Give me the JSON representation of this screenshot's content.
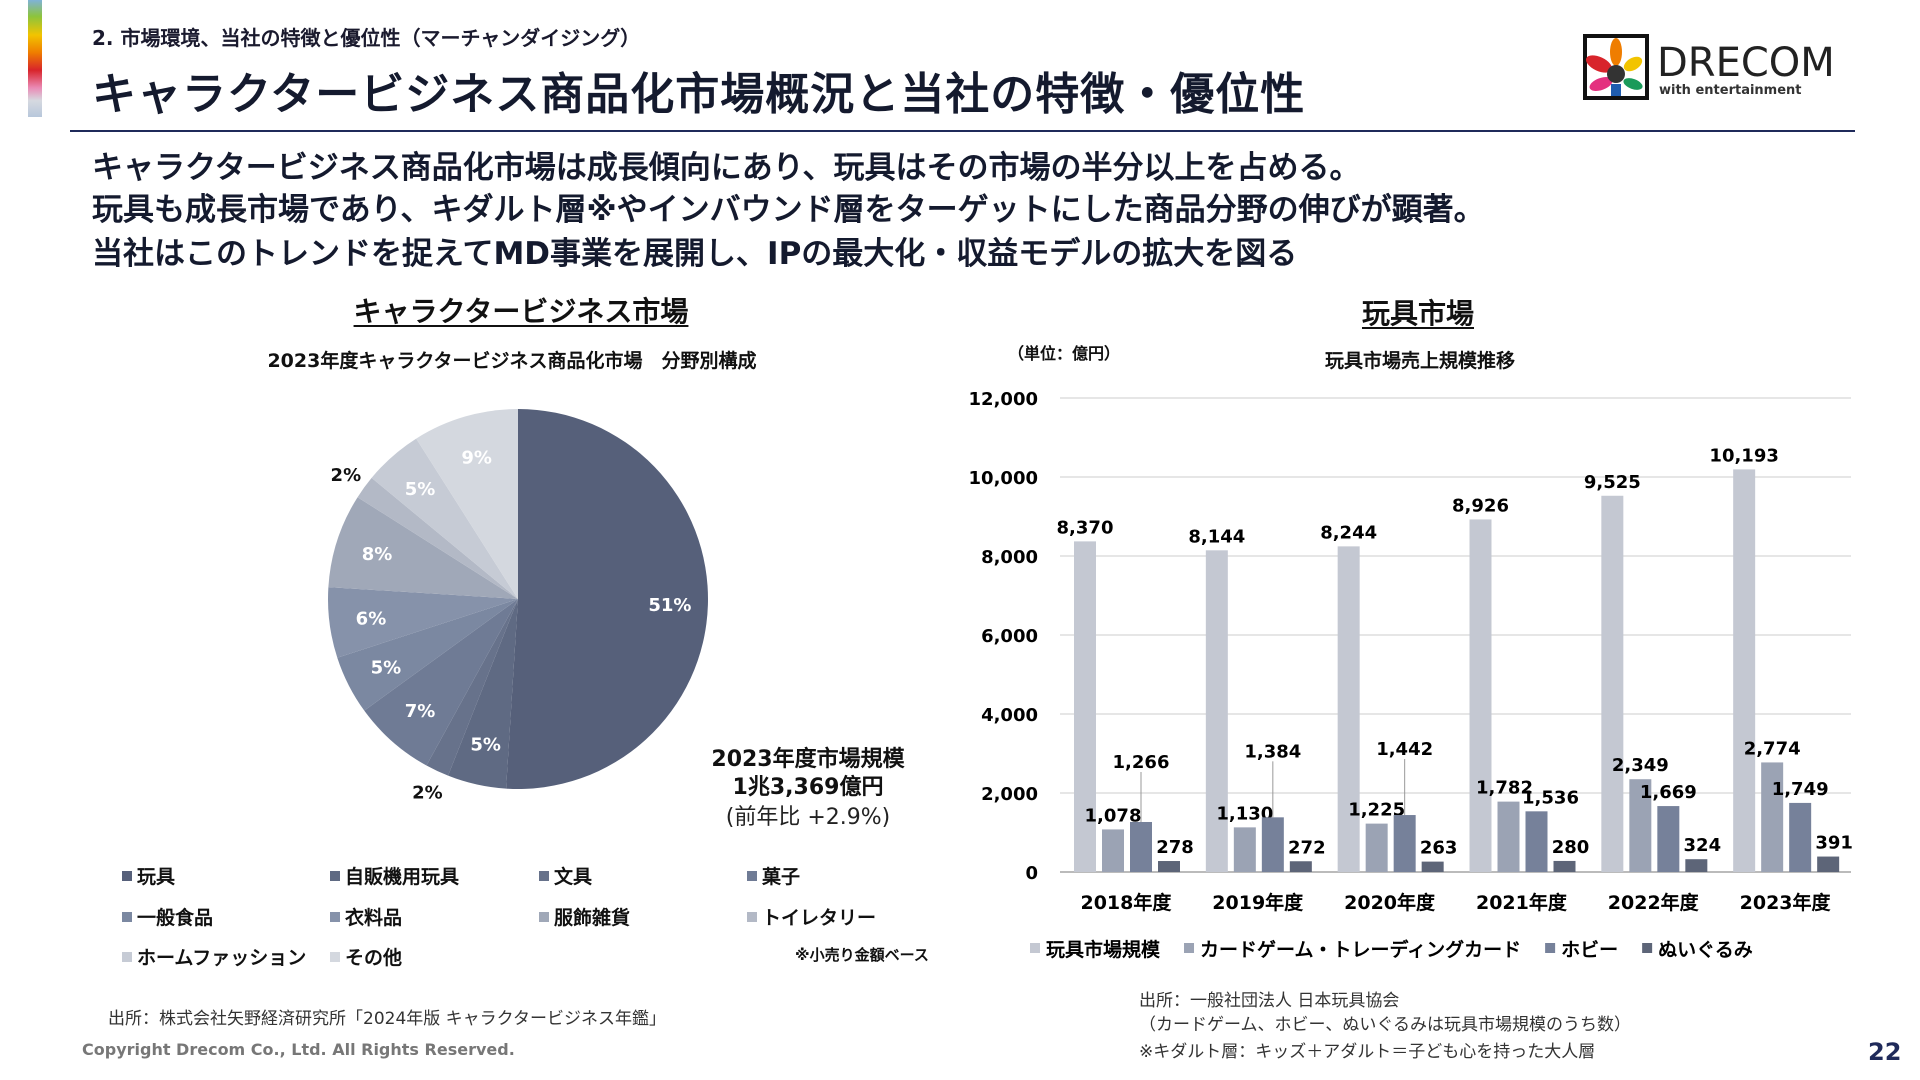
{
  "header": {
    "section": "2. 市場環境、当社の特徴と優位性（マーチャンダイジング）",
    "title": "キャラクタービジネス商品化市場概況と当社の特徴・優位性",
    "logo_text": "DRECOM",
    "logo_tagline": "with entertainment"
  },
  "summary": [
    "キャラクタービジネス商品化市場は成長傾向にあり、玩具はその市場の半分以上を占める。",
    "玩具も成長市場であり、キダルト層※やインバウンド層をターゲットにした商品分野の伸びが顕著。",
    "当社はこのトレンドを捉えてMD事業を展開し、IPの最大化・収益モデルの拡大を図る"
  ],
  "left": {
    "heading": "キャラクタービジネス市場",
    "market_size_title": "2023年度市場規模",
    "market_size_value": "1兆3,369億円",
    "market_size_yoy": "(前年比 +2.9%)",
    "note": "※小売り金額ベース",
    "source": "出所：株式会社矢野経済研究所「2024年版 キャラクタービジネス年鑑」"
  },
  "right": {
    "heading": "玩具市場",
    "unit": "（単位：億円）",
    "source_lines": [
      "出所：一般社団法人 日本玩具協会",
      "（カードゲーム、ホビー、ぬいぐるみは玩具市場規模のうち数）",
      "※キダルト層：キッズ＋アダルト＝子ども心を持った大人層"
    ]
  },
  "footer": {
    "copyright": "Copyright Drecom Co., Ltd. All Rights Reserved.",
    "page": "22"
  },
  "chart_data": [
    {
      "type": "pie",
      "title": "2023年度キャラクタービジネス商品化市場　分野別構成",
      "categories": [
        "玩具",
        "自販機用玩具",
        "文具",
        "菓子",
        "一般食品",
        "衣料品",
        "服飾雑貨",
        "トイレタリー",
        "ホームファッション",
        "その他"
      ],
      "values": [
        51,
        5,
        2,
        7,
        5,
        6,
        8,
        2,
        5,
        9
      ],
      "labels": [
        "51%",
        "5%",
        "2%",
        "7%",
        "5%",
        "6%",
        "8%",
        "2%",
        "5%",
        "9%"
      ],
      "colors": [
        "#56607a",
        "#5f6a83",
        "#67728b",
        "#6f7b95",
        "#7b88a1",
        "#8692aa",
        "#a0a8b8",
        "#b3b9c6",
        "#c6cbd5",
        "#d4d8df"
      ],
      "legend": "bottom"
    },
    {
      "type": "bar",
      "title": "玩具市場売上規模推移",
      "categories": [
        "2018年度",
        "2019年度",
        "2020年度",
        "2021年度",
        "2022年度",
        "2023年度"
      ],
      "ylim": [
        0,
        12000
      ],
      "yticks": [
        "0",
        "2,000",
        "4,000",
        "6,000",
        "8,000",
        "10,000",
        "12,000"
      ],
      "grid": true,
      "legend": "bottom",
      "series": [
        {
          "name": "玩具市場規模",
          "values": [
            8370,
            8144,
            8244,
            8926,
            9525,
            10193
          ],
          "labels": [
            "8,370",
            "8,144",
            "8,244",
            "8,926",
            "9,525",
            "10,193"
          ],
          "color": "#c4c8d2"
        },
        {
          "name": "カードゲーム・トレーディングカード",
          "values": [
            1078,
            1130,
            1225,
            1782,
            2349,
            2774
          ],
          "labels": [
            "1,078",
            "1,130",
            "1,225",
            "1,782",
            "2,349",
            "2,774"
          ],
          "color": "#9ba3b4"
        },
        {
          "name": "ホビー",
          "values": [
            1266,
            1384,
            1442,
            1536,
            1669,
            1749
          ],
          "labels": [
            "1,266",
            "1,384",
            "1,442",
            "1,536",
            "1,669",
            "1,749"
          ],
          "color": "#76819a"
        },
        {
          "name": "ぬいぐるみ",
          "values": [
            278,
            272,
            263,
            280,
            324,
            391
          ],
          "labels": [
            "278",
            "272",
            "263",
            "280",
            "324",
            "391"
          ],
          "color": "#5d6578"
        }
      ]
    }
  ]
}
